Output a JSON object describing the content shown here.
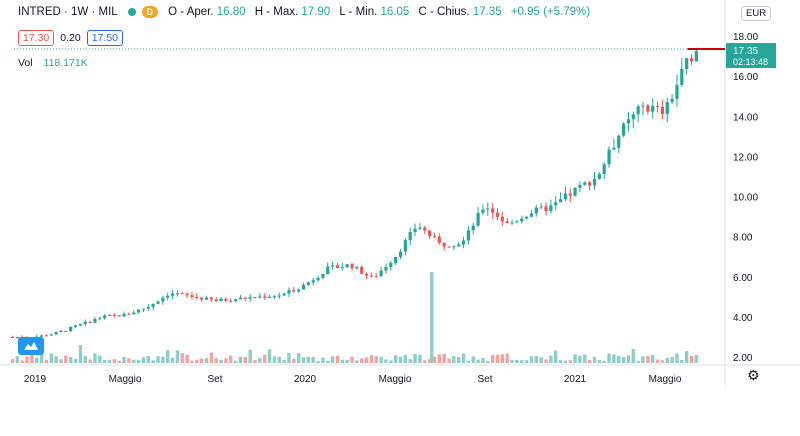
{
  "header": {
    "symbol": "INTRED · 1W · MIL",
    "badge": "D",
    "ohlc_text": "O - Aper.",
    "open": "16.80",
    "high_label": "H - Max.",
    "high": "17.90",
    "low_label": "L - Min.",
    "low": "16.05",
    "close_label": "C - Chius.",
    "close": "17.35",
    "change": "+0.95 (+5.79%)"
  },
  "quote": {
    "bid": "17.30",
    "spread": "0.20",
    "ask": "17.50"
  },
  "volume": {
    "label": "Vol",
    "value": "118.171K"
  },
  "currency": "EUR",
  "last_price": {
    "price": "17.35",
    "countdown": "02:13:48"
  },
  "colors": {
    "up": "#26a69a",
    "down": "#ef5350",
    "price_line": "#cc0000",
    "volume_up": "#8ecdc8",
    "volume_down": "#f5a3a1"
  },
  "icons": {
    "settings": "gear-icon",
    "logo": "tradingview-logo-icon"
  },
  "chart_data": {
    "type": "candlestick",
    "interval": "1W",
    "yaxis_ticks": [
      "2.00",
      "4.00",
      "6.00",
      "8.00",
      "10.00",
      "12.00",
      "14.00",
      "16.00",
      "18.00"
    ],
    "ylim": [
      0.8,
      18.7
    ],
    "xaxis_ticks": [
      {
        "label": "2019",
        "date": "2019-01"
      },
      {
        "label": "Maggio",
        "date": "2019-05"
      },
      {
        "label": "Set",
        "date": "2019-09"
      },
      {
        "label": "2020",
        "date": "2020-01"
      },
      {
        "label": "Maggio",
        "date": "2020-05"
      },
      {
        "label": "Set",
        "date": "2020-09"
      },
      {
        "label": "2021",
        "date": "2021-01"
      },
      {
        "label": "Maggio",
        "date": "2021-05"
      }
    ],
    "close_path": [
      [
        "2018-12",
        3.0
      ],
      [
        "2019-01",
        3.0
      ],
      [
        "2019-02",
        3.2
      ],
      [
        "2019-03",
        3.6
      ],
      [
        "2019-04",
        4.0
      ],
      [
        "2019-05",
        4.1
      ],
      [
        "2019-06",
        4.5
      ],
      [
        "2019-07",
        5.2
      ],
      [
        "2019-08",
        5.0
      ],
      [
        "2019-09",
        4.8
      ],
      [
        "2019-10",
        4.9
      ],
      [
        "2019-11",
        5.0
      ],
      [
        "2019-12",
        5.1
      ],
      [
        "2020-01",
        5.6
      ],
      [
        "2020-02",
        6.4
      ],
      [
        "2020-03",
        6.6
      ],
      [
        "2020-04",
        5.9
      ],
      [
        "2020-05",
        7.0
      ],
      [
        "2020-06",
        8.6
      ],
      [
        "2020-07",
        7.6
      ],
      [
        "2020-08",
        7.7
      ],
      [
        "2020-09",
        9.6
      ],
      [
        "2020-10",
        8.6
      ],
      [
        "2020-11",
        9.2
      ],
      [
        "2020-12",
        9.5
      ],
      [
        "2021-01",
        10.3
      ],
      [
        "2021-02",
        11.0
      ],
      [
        "2021-03",
        13.2
      ],
      [
        "2021-04",
        14.5
      ],
      [
        "2021-05",
        14.2
      ],
      [
        "2021-06",
        16.8
      ],
      [
        "2021-06-15",
        17.35
      ]
    ],
    "volume_spike": {
      "date": "2020-06-20",
      "value_rel": 1.0
    }
  }
}
